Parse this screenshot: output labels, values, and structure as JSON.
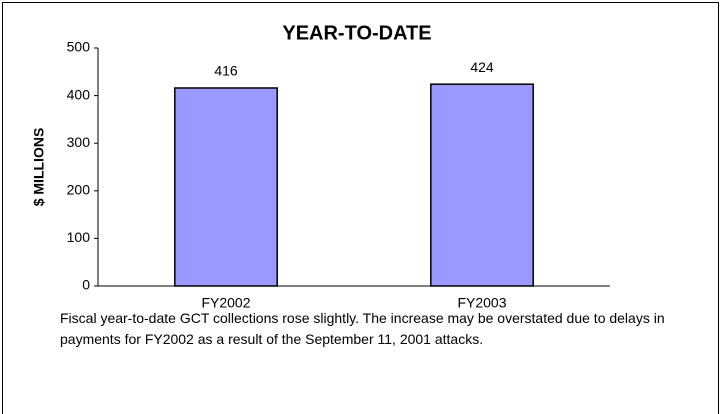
{
  "chart_data": {
    "type": "bar",
    "title": "YEAR-TO-DATE",
    "ylabel": "$ MILLIONS",
    "categories": [
      "FY2002",
      "FY2003"
    ],
    "values": [
      416,
      424
    ],
    "color": "#9999ff",
    "ylim": [
      0,
      500
    ],
    "yticks": [
      0,
      100,
      200,
      300,
      400,
      500
    ],
    "grid": false,
    "caption": "Fiscal year-to-date GCT collections rose slightly.  The increase may be overstated due to delays in payments for FY2002 as a result of the September 11, 2001 attacks."
  }
}
